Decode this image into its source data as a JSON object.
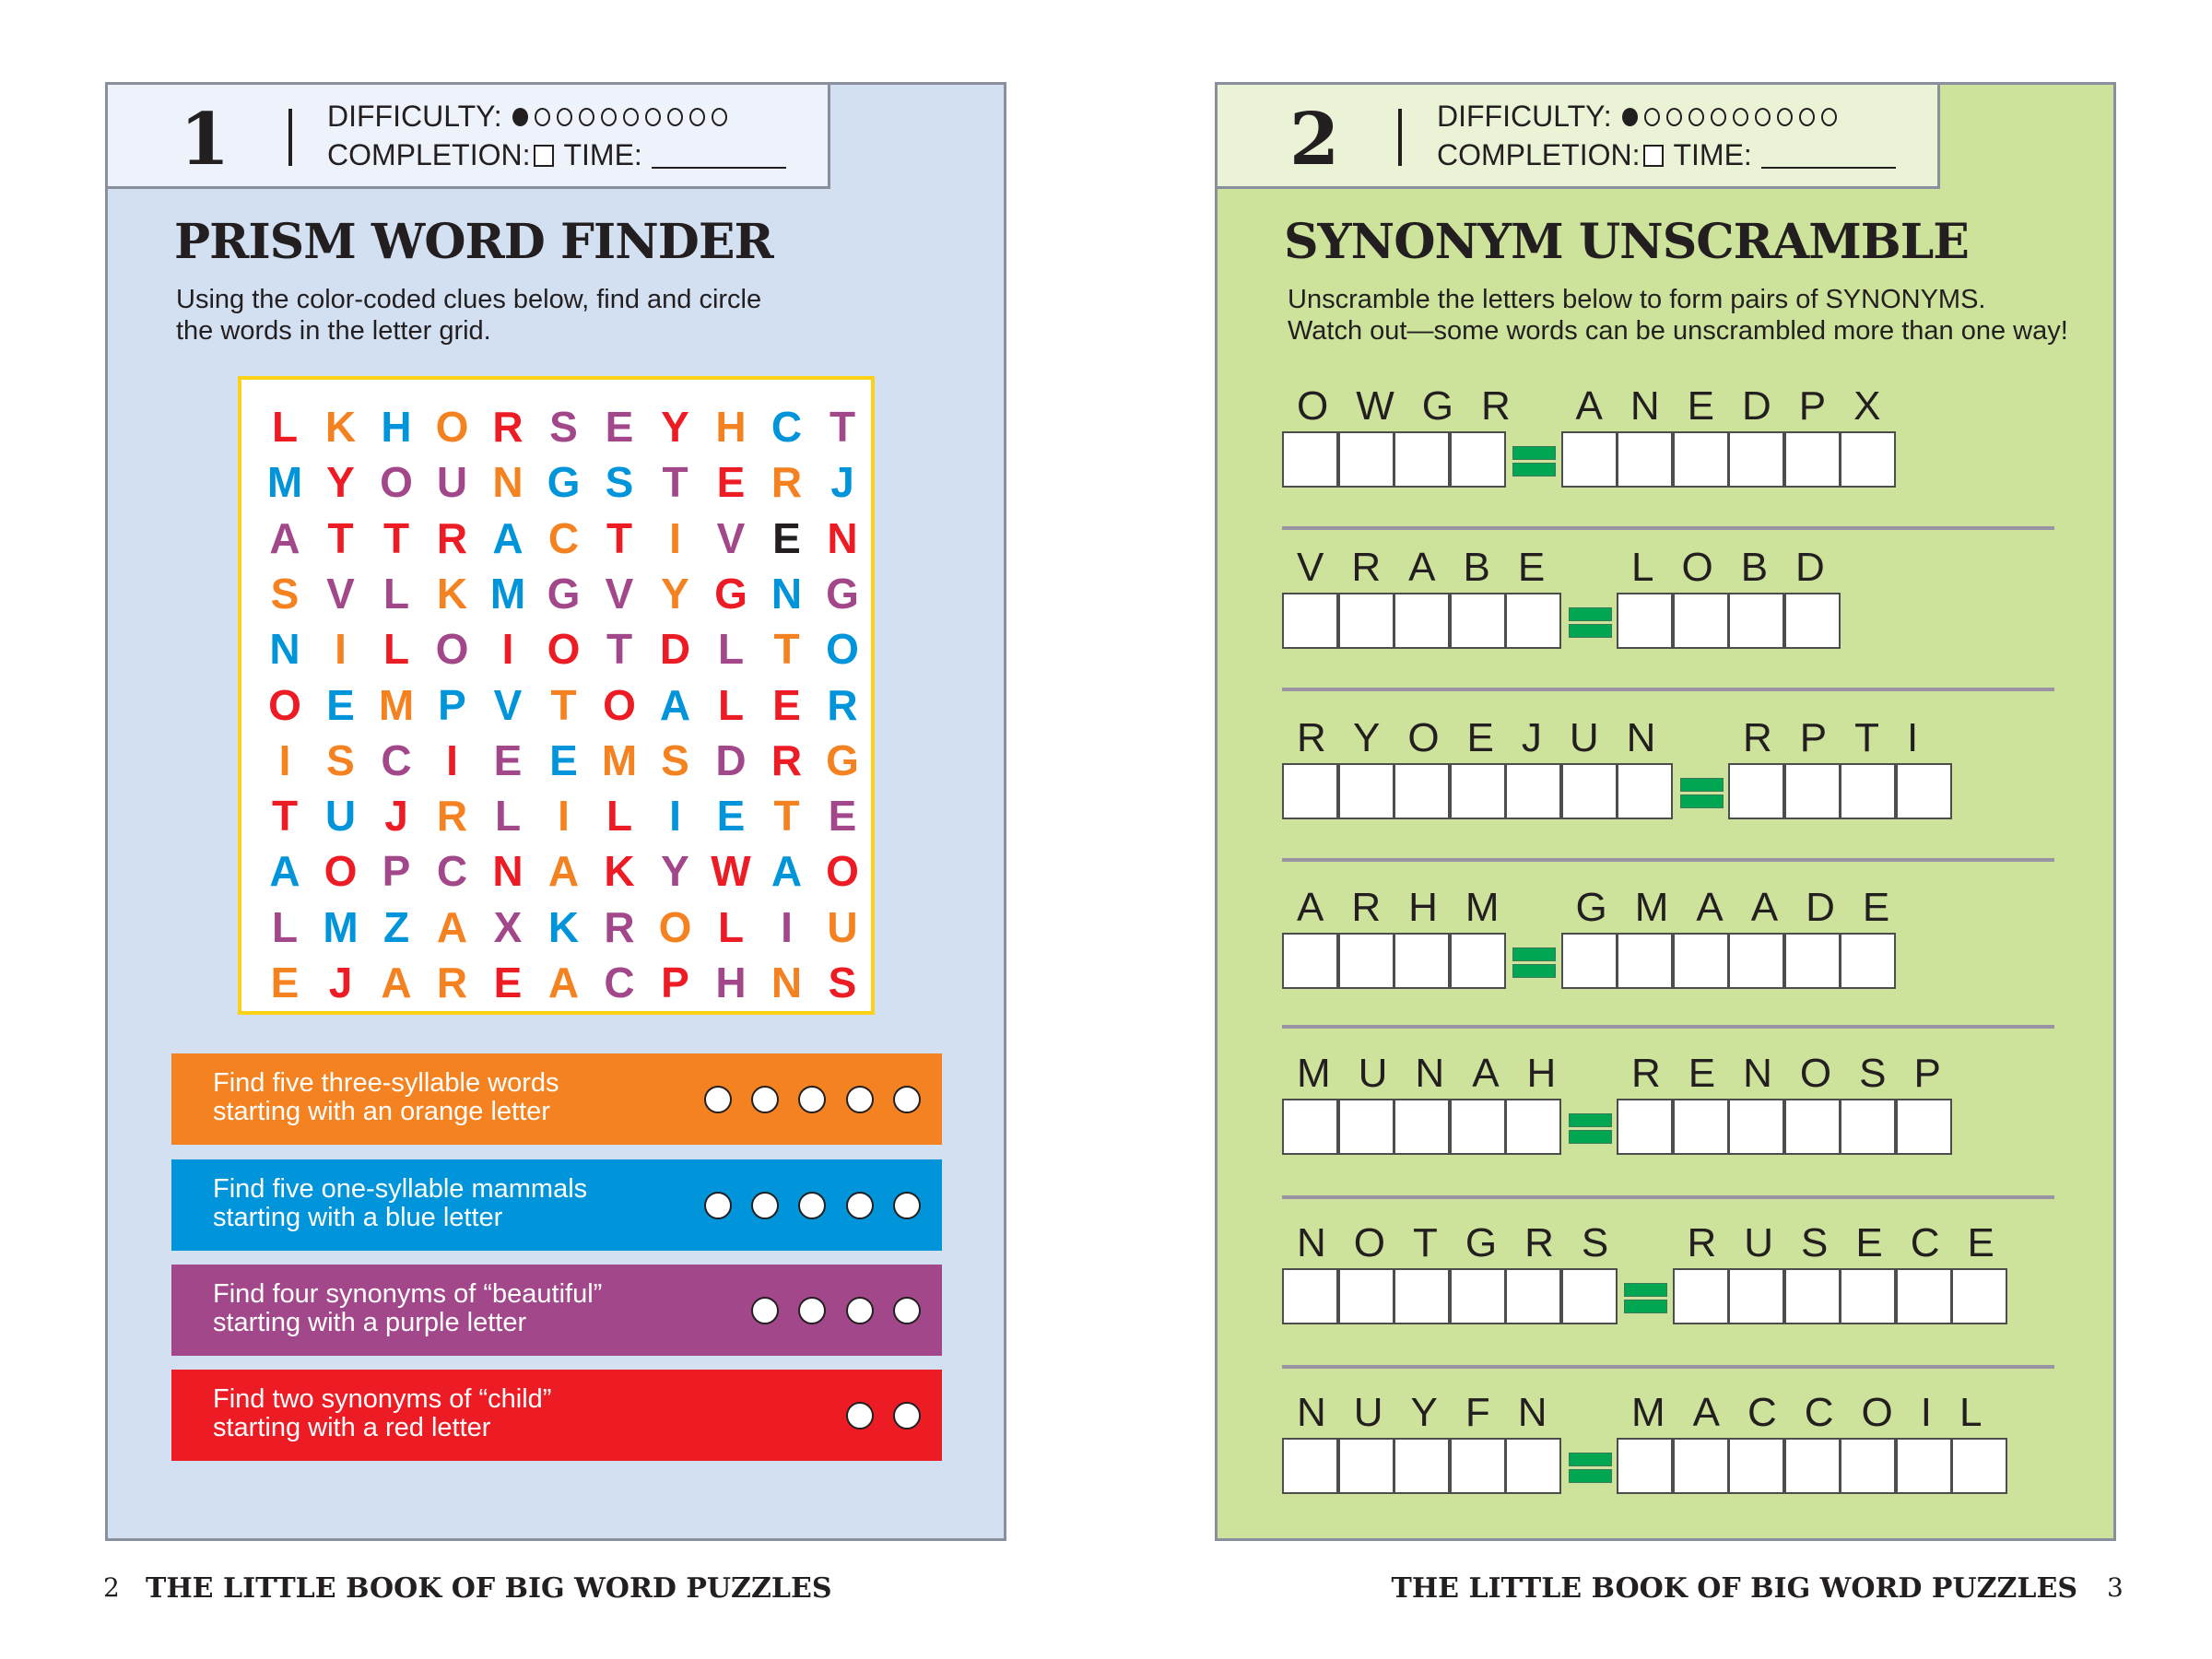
{
  "colors": {
    "red": "#ed1c24",
    "orange": "#f58220",
    "blue": "#0095da",
    "purple": "#a3478b",
    "yellow": "#fcd116",
    "green": "#00a651"
  },
  "puzzle1": {
    "number": "1",
    "difficulty_label": "DIFFICULTY:",
    "difficulty_level": 1,
    "difficulty_max": 10,
    "completion_label": "COMPLETION:",
    "time_label": "TIME:",
    "title": "PRISM WORD FINDER",
    "desc_line1": "Using the color-coded clues below, find and circle",
    "desc_line2": "the words in the letter grid.",
    "grid": {
      "rows": [
        "LKHORSEYHCT",
        "MYOUNGSTERJ",
        "ATTRACTIVEN",
        "SVLKMGVYGNG",
        "NILOIOTDLTO",
        "OEMPVTOALER",
        "ISCIEEMSDRG",
        "TUJRLILIETE",
        "AOPCNAKYWAO",
        "LMZAXKROLIU",
        "EJAREACPHNS"
      ],
      "colors": [
        "roborpprobp",
        "brppobbprob",
        "prrrboroper",
        "oppobpporbp",
        "borprrprpob",
        "rbobborbrrb",
        "ooprpboopro",
        "rbroporbbop",
        "brpprorprbr",
        "pbbopbporpo",
        "orooroprpor"
      ]
    },
    "clues": [
      {
        "line1": "Find five three-syllable words",
        "line2": "starting with an orange letter",
        "color": "orange",
        "circles": 5
      },
      {
        "line1": "Find five one-syllable mammals",
        "line2": "starting with a blue letter",
        "color": "blue",
        "circles": 5
      },
      {
        "line1": "Find four synonyms of  “beautiful”",
        "line2": "starting with a purple letter",
        "color": "purple",
        "circles": 4
      },
      {
        "line1": "Find two synonyms of  “child”",
        "line2": "starting with a red letter",
        "color": "red",
        "circles": 2
      }
    ]
  },
  "puzzle2": {
    "number": "2",
    "difficulty_label": "DIFFICULTY:",
    "difficulty_level": 1,
    "difficulty_max": 10,
    "completion_label": "COMPLETION:",
    "time_label": "TIME:",
    "title": "SYNONYM UNSCRAMBLE",
    "desc_line1": "Unscramble the letters below to form pairs of SYNONYMS.",
    "desc_line2": "Watch out—some words can be unscrambled more than one way!",
    "pairs": [
      {
        "left": "OWGR",
        "right": "ANEDPX"
      },
      {
        "left": "VRABE",
        "right": "LOBD"
      },
      {
        "left": "RYOEJUN",
        "right": "RPTI"
      },
      {
        "left": "ARHM",
        "right": "GMAADE"
      },
      {
        "left": "MUNAH",
        "right": "RENOSP"
      },
      {
        "left": "NOTGRS",
        "right": "RUSECE"
      },
      {
        "left": "NUYFN",
        "right": "MACCOIL"
      }
    ]
  },
  "footer": {
    "left_page": "2",
    "right_page": "3",
    "book_title": "THE LITTLE BOOK OF BIG WORD PUZZLES"
  }
}
